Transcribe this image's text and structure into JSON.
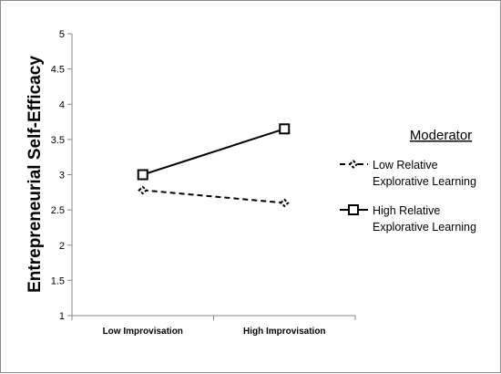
{
  "chart_data": {
    "type": "line",
    "title": "",
    "xlabel": "",
    "ylabel": "Entrepreneurial Self-Efficacy",
    "categories": [
      "Low Improvisation",
      "High Improvisation"
    ],
    "ylim": [
      1,
      5
    ],
    "yticks": [
      "1",
      "1.5",
      "2",
      "2.5",
      "3",
      "3.5",
      "4",
      "4.5",
      "5"
    ],
    "grid": false,
    "legend_title": "Moderator",
    "legend_position": "right",
    "series": [
      {
        "name": "Low Relative Explorative Learning",
        "name_lines": [
          "Low Relative",
          "Explorative Learning"
        ],
        "values": [
          2.78,
          2.6
        ],
        "line_style": "dashed",
        "marker": "diamond-dash",
        "color": "#000000"
      },
      {
        "name": "High Relative Explorative Learning",
        "name_lines": [
          "High Relative",
          "Explorative Learning"
        ],
        "values": [
          3.0,
          3.65
        ],
        "line_style": "solid",
        "marker": "square",
        "color": "#000000"
      }
    ]
  }
}
